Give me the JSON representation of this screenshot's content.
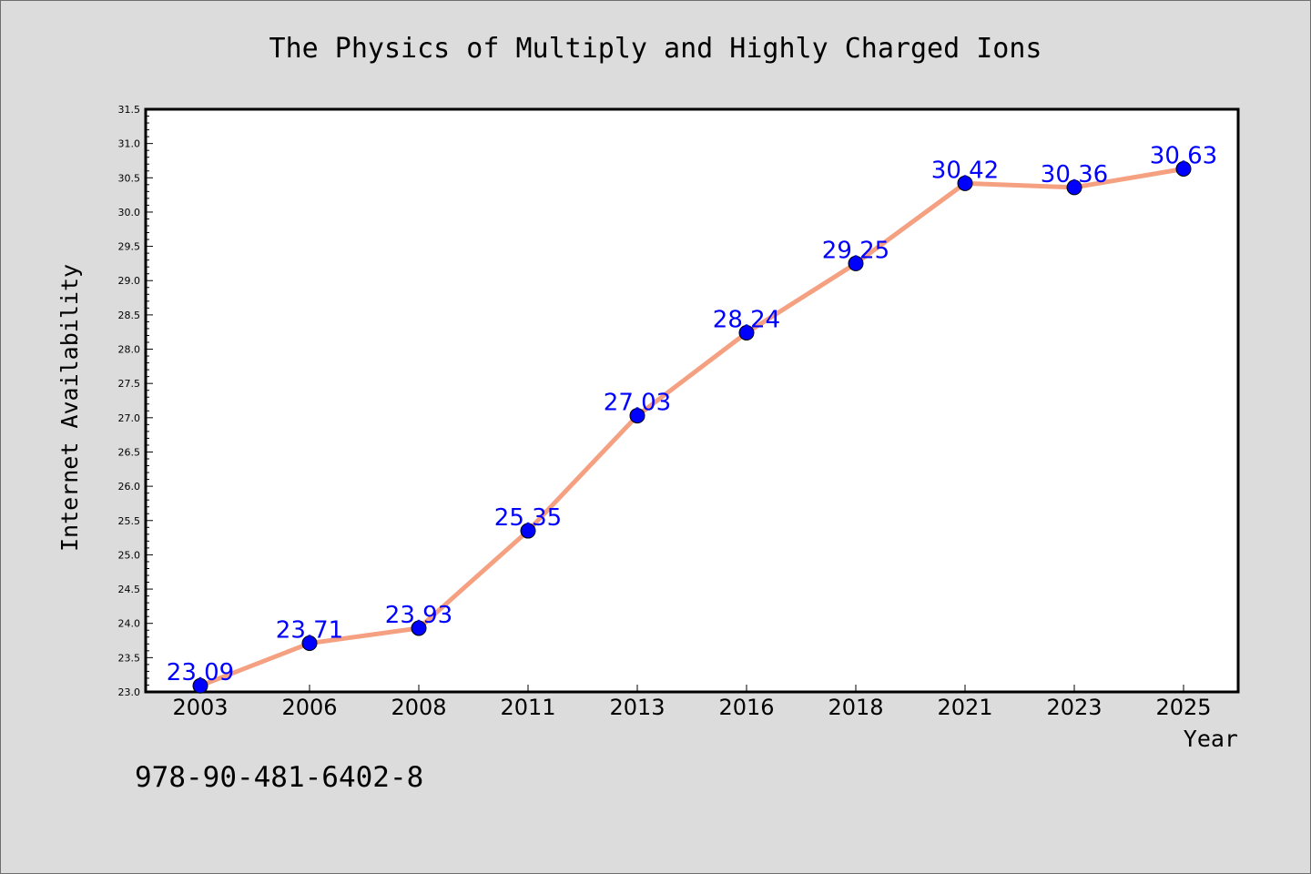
{
  "chart_data": {
    "type": "line",
    "title": "The Physics of Multiply and Highly Charged Ions",
    "xlabel": "Year",
    "ylabel": "Internet Availability",
    "categories": [
      "2003",
      "2006",
      "2008",
      "2011",
      "2013",
      "2016",
      "2018",
      "2021",
      "2023",
      "2025"
    ],
    "series": [
      {
        "values": [
          23.09,
          23.71,
          23.93,
          25.35,
          27.03,
          28.24,
          29.25,
          30.42,
          30.36,
          30.63
        ],
        "data_labels": [
          "23.09",
          "23.71",
          "23.93",
          "25.35",
          "27.03",
          "28.24",
          "29.25",
          "30.42",
          "30.36",
          "30.63"
        ]
      }
    ],
    "ylim": [
      23.0,
      31.5
    ],
    "yticks": [
      "23.0",
      "23.5",
      "24.0",
      "24.5",
      "25.0",
      "25.5",
      "26.0",
      "26.5",
      "27.0",
      "27.5",
      "28.0",
      "28.5",
      "29.0",
      "29.5",
      "30.0",
      "30.5",
      "31.0",
      "31.5"
    ],
    "grid": false,
    "line_color": "#f5a080",
    "marker_color": "#0000ff",
    "label_color": "#0000ff"
  },
  "footer": {
    "isbn": "978-90-481-6402-8"
  }
}
